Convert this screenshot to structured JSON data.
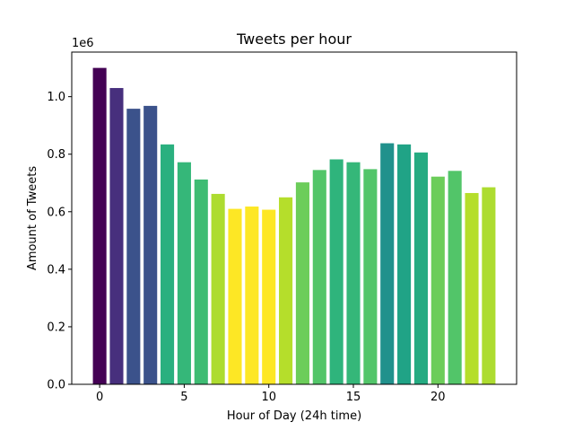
{
  "chart_data": {
    "type": "bar",
    "title": "Tweets per hour",
    "xlabel": "Hour of Day (24h time)",
    "ylabel": "Amount of Tweets",
    "y_offset_label": "1e6",
    "x": [
      0,
      1,
      2,
      3,
      4,
      5,
      6,
      7,
      8,
      9,
      10,
      11,
      12,
      13,
      14,
      15,
      16,
      17,
      18,
      19,
      20,
      21,
      22,
      23
    ],
    "values": [
      1100000,
      1030000,
      958000,
      968000,
      834000,
      772000,
      712000,
      662000,
      610000,
      618000,
      607000,
      650000,
      702000,
      745000,
      782000,
      772000,
      748000,
      838000,
      834000,
      806000,
      722000,
      742000,
      665000,
      685000
    ],
    "colors": [
      "#440154",
      "#472f7d",
      "#3b528b",
      "#3b528b",
      "#2ab07f",
      "#35b779",
      "#3ebc73",
      "#addc30",
      "#fde725",
      "#fde725",
      "#fde725",
      "#b5de2b",
      "#6ccd5a",
      "#52c569",
      "#2fb47c",
      "#35b779",
      "#52c569",
      "#21918c",
      "#20a386",
      "#25ab82",
      "#6ccd5a",
      "#52c569",
      "#b5de2b",
      "#addc30"
    ],
    "xticks": [
      0,
      5,
      10,
      15,
      20
    ],
    "yticks": [
      0,
      200000,
      400000,
      600000,
      800000,
      1000000
    ],
    "ytick_labels": [
      "0.0",
      "0.2",
      "0.4",
      "0.6",
      "0.8",
      "1.0"
    ],
    "xlim": [
      -1.65,
      24.65
    ],
    "ylim": [
      0,
      1155000
    ],
    "grid": false,
    "legend": "none"
  }
}
